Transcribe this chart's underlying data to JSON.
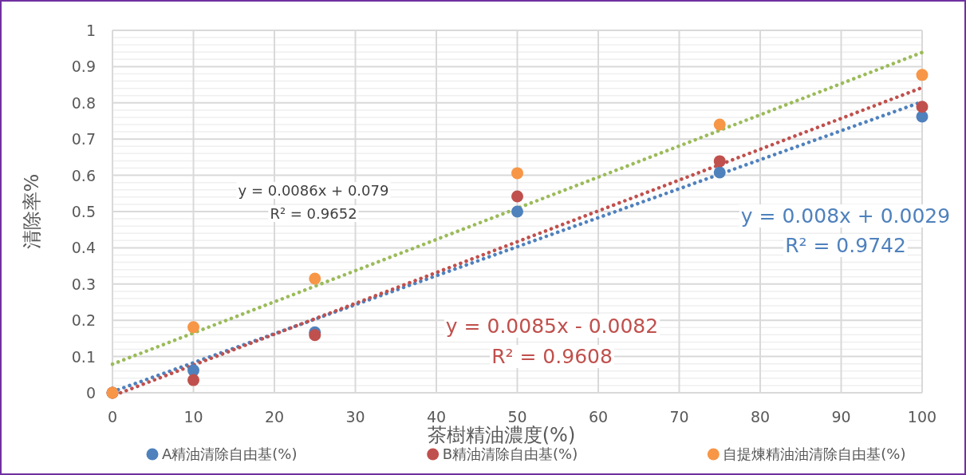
{
  "chart_data": {
    "type": "scatter",
    "xlabel": "茶樹精油濃度(%)",
    "ylabel": "清除率%",
    "xlim": [
      0,
      100
    ],
    "ylim": [
      0,
      1
    ],
    "xticks": [
      0,
      10,
      20,
      30,
      40,
      50,
      60,
      70,
      80,
      90,
      100
    ],
    "yticks": [
      0,
      0.1,
      0.2,
      0.3,
      0.4,
      0.5,
      0.6,
      0.7,
      0.8,
      0.9,
      1
    ],
    "grid": true,
    "legend": "bottom",
    "marker": "circle",
    "x": [
      0,
      10,
      25,
      50,
      75,
      100
    ],
    "series": [
      {
        "name": "A精油清除自由基(%)",
        "color": "#4f81bd",
        "values": [
          0,
          0.062,
          0.167,
          0.5,
          0.608,
          0.762
        ]
      },
      {
        "name": "B精油清除自由基(%)",
        "color": "#c0504d",
        "values": [
          0,
          0.035,
          0.159,
          0.542,
          0.639,
          0.789
        ]
      },
      {
        "name": "自提煉精油油清除自由基(%)",
        "color": "#f79646",
        "values": [
          0,
          0.181,
          0.315,
          0.606,
          0.74,
          0.877
        ]
      },
      {
        "type": "line",
        "marker": "none",
        "line_style": "dotted",
        "color": "#9bbb59",
        "x": [
          0,
          100
        ],
        "values": [
          0.079,
          0.939
        ]
      },
      {
        "type": "line",
        "marker": "none",
        "line_style": "dotted",
        "color": "#4f81bd",
        "x": [
          0,
          100
        ],
        "values": [
          0.003,
          0.803
        ]
      },
      {
        "type": "line",
        "marker": "none",
        "line_style": "dotted",
        "color": "#c0504d",
        "x": [
          1,
          100
        ],
        "values": [
          0,
          0.842
        ]
      }
    ],
    "annotations": [
      "y = 0.0086x + 0.079",
      "R² = 0.9652",
      "y = 0.008x + 0.0029",
      "R² = 0.9742",
      "y = 0.0085x - 0.0082",
      "R² = 0.9608"
    ]
  }
}
